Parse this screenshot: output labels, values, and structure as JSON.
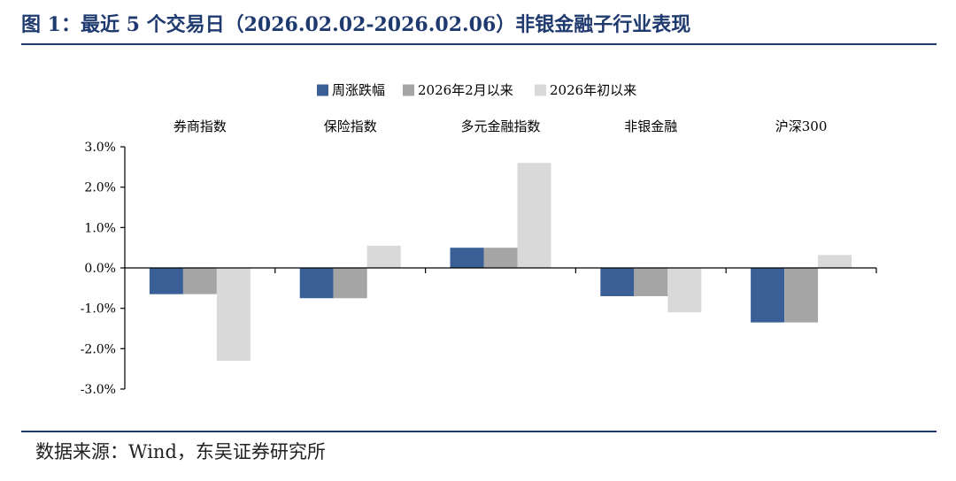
{
  "figure": {
    "title": "图 1：最近 5 个交易日（2026.02.02-2026.02.06）非银金融子行业表现",
    "source": "数据来源：Wind，东吴证券研究所"
  },
  "chart_data": {
    "type": "bar",
    "categories": [
      "券商指数",
      "保险指数",
      "多元金融指数",
      "非银金融",
      "沪深300"
    ],
    "series": [
      {
        "name": "周涨跌幅",
        "color": "#3a5f96",
        "values": [
          -0.65,
          -0.75,
          0.5,
          -0.7,
          -1.35
        ]
      },
      {
        "name": "2026年2月以来",
        "color": "#a5a5a5",
        "values": [
          -0.65,
          -0.75,
          0.5,
          -0.7,
          -1.35
        ]
      },
      {
        "name": "2026年初以来",
        "color": "#d9d9d9",
        "values": [
          -2.3,
          0.55,
          2.6,
          -1.1,
          0.32
        ]
      }
    ],
    "yticks": [
      "3.0%",
      "2.0%",
      "1.0%",
      "0.0%",
      "-1.0%",
      "-2.0%",
      "-3.0%"
    ],
    "ylim": [
      -3.0,
      3.0
    ],
    "unit": "%",
    "legend_position": "top-center",
    "grid": false
  }
}
